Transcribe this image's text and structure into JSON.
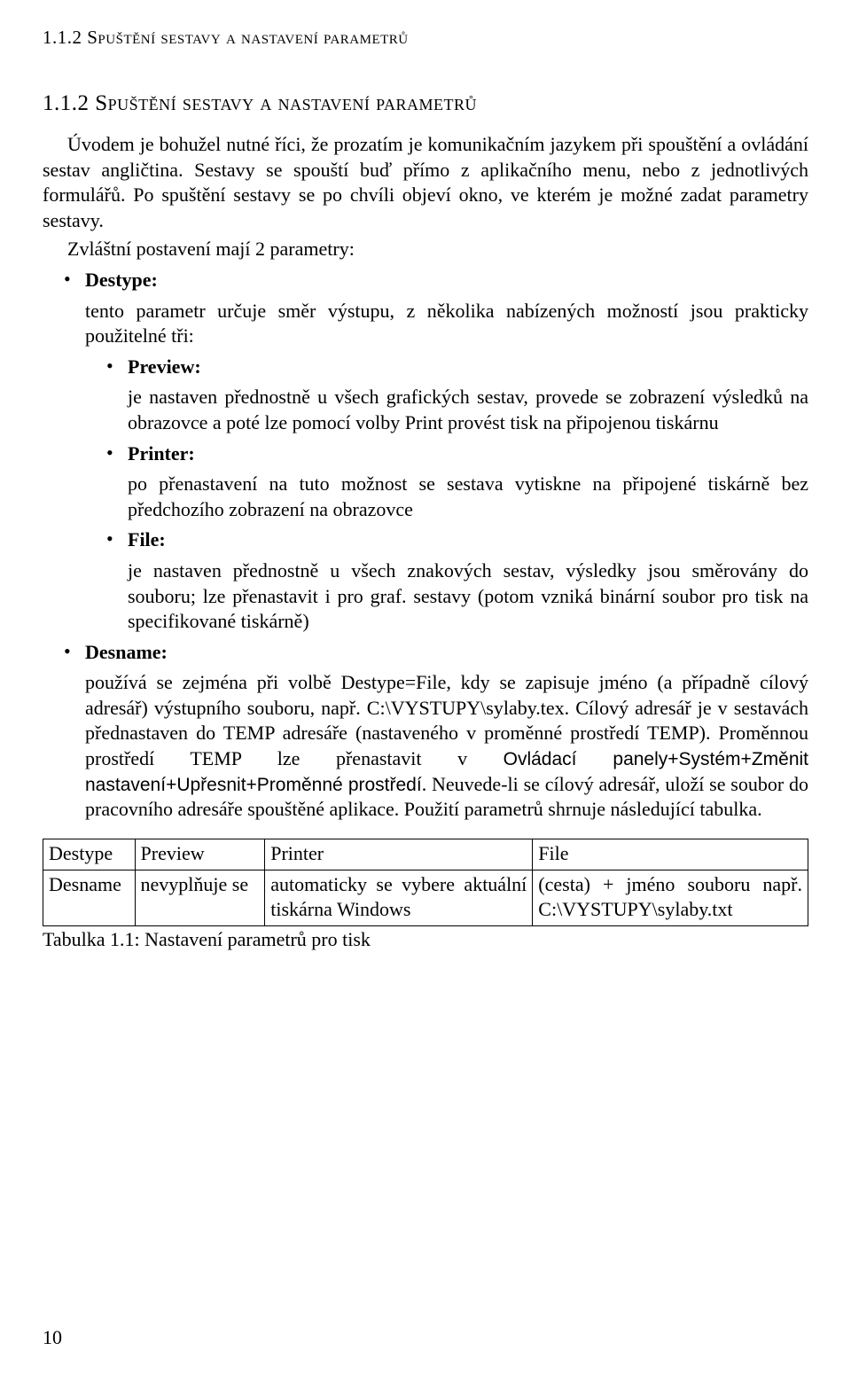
{
  "runningHeader": "1.1.2 Spuštění sestavy a nastavení parametrů",
  "sectionTitle": "1.1.2 Spuštění sestavy a nastavení parametrů",
  "introParagraph": "Úvodem je bohužel nutné říci, že prozatím je komunikačním jazykem při spouštění a ovládání sestav angličtina. Sestavy se spouští buď přímo z aplikačního menu, nebo z jednotlivých formulářů. Po spuštění sestavy se po chvíli objeví okno, ve kterém je možné zadat parametry sestavy.",
  "introSecondLine": "Zvláštní postavení mají 2 parametry:",
  "destype": {
    "label": "Destype:",
    "desc": "tento parametr určuje směr výstupu, z několika nabízených možností jsou prakticky použitelné tři:",
    "preview": {
      "label": "Preview:",
      "desc": "je nastaven přednostně u všech grafických sestav, provede se zobrazení výsledků na obrazovce a poté lze pomocí volby Print provést tisk na připojenou tiskárnu"
    },
    "printer": {
      "label": "Printer:",
      "desc": "po přenastavení na tuto možnost se sestava vytiskne na připojené tiskárně bez předchozího zobrazení na obrazovce"
    },
    "file": {
      "label": "File:",
      "desc": "je nastaven přednostně u všech znakových sestav, výsledky jsou směrovány do souboru; lze přenastavit i pro graf. sestavy (potom vzniká binární soubor pro tisk na specifikované tiskárně)"
    }
  },
  "desname": {
    "label": "Desname:",
    "descPrefix": "používá se zejména při volbě Destype=File, kdy se zapisuje jméno (a případně cílový adresář) výstupního souboru, např. C:\\VYSTUPY\\sylaby.tex. Cílový adresář je v sestavách přednastaven do TEMP adresáře (nastaveného v proměnné prostředí TEMP). Proměnnou prostředí TEMP lze přenastavit v ",
    "descNarrow": "Ovládací panely+Systém+Změnit nastavení+Upřesnit+Proměnné prostředí",
    "descSuffix": ". Neuvede-li se cílový adresář, uloží se soubor do pracovního adresáře spouštěné aplikace. Použití parametrů shrnuje následující tabulka."
  },
  "table": {
    "columns": [
      "Destype",
      "Preview",
      "Printer",
      "File"
    ],
    "row": {
      "c0": "Desname",
      "c1": "nevyplňuje se",
      "c2": "automaticky se vybere aktuální tiskárna Windows",
      "c3": "(cesta) + jméno souboru např. C:\\VYSTUPY\\sylaby.txt"
    },
    "col_widths_pct": [
      12,
      17,
      35,
      36
    ],
    "caption": "Tabulka 1.1: Nastavení parametrů pro tisk"
  },
  "pageNumber": "10",
  "colors": {
    "text": "#000000",
    "background": "#ffffff",
    "border": "#000000"
  },
  "typography": {
    "body_fontsize_pt": 16,
    "header_fontsize_pt": 16,
    "title_fontsize_pt": 18
  }
}
